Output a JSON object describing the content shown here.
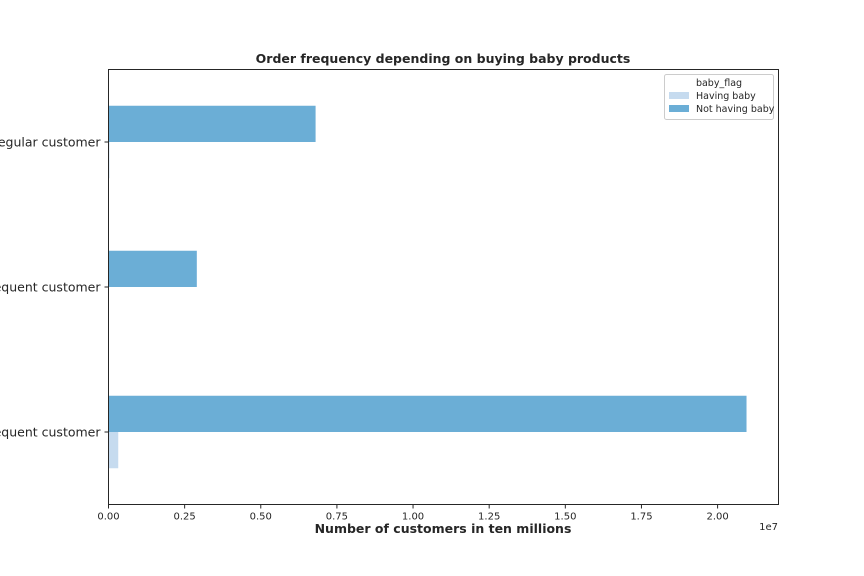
{
  "chart_data": {
    "type": "bar",
    "orientation": "horizontal",
    "title": "Order frequency depending on buying baby products",
    "xlabel": "Number of customers in ten millions",
    "ylabel": "",
    "x_offset_label": "1e7",
    "xlim": [
      0,
      22000000
    ],
    "xticks": [
      0,
      2500000,
      5000000,
      7500000,
      10000000,
      12500000,
      15000000,
      17500000,
      20000000
    ],
    "xtick_labels": [
      "0.00",
      "0.25",
      "0.50",
      "0.75",
      "1.00",
      "1.25",
      "1.50",
      "1.75",
      "2.00"
    ],
    "categories": [
      "Regular customer",
      "requent customer",
      "requent customer"
    ],
    "legend": {
      "title": "baby_flag",
      "position": "top-right"
    },
    "grid": false,
    "series": [
      {
        "name": "Having baby",
        "color": "#c6dbef",
        "values": [
          30000,
          0,
          320000
        ]
      },
      {
        "name": "Not having baby",
        "color": "#6baed6",
        "values": [
          6800000,
          2900000,
          20950000
        ]
      }
    ]
  }
}
